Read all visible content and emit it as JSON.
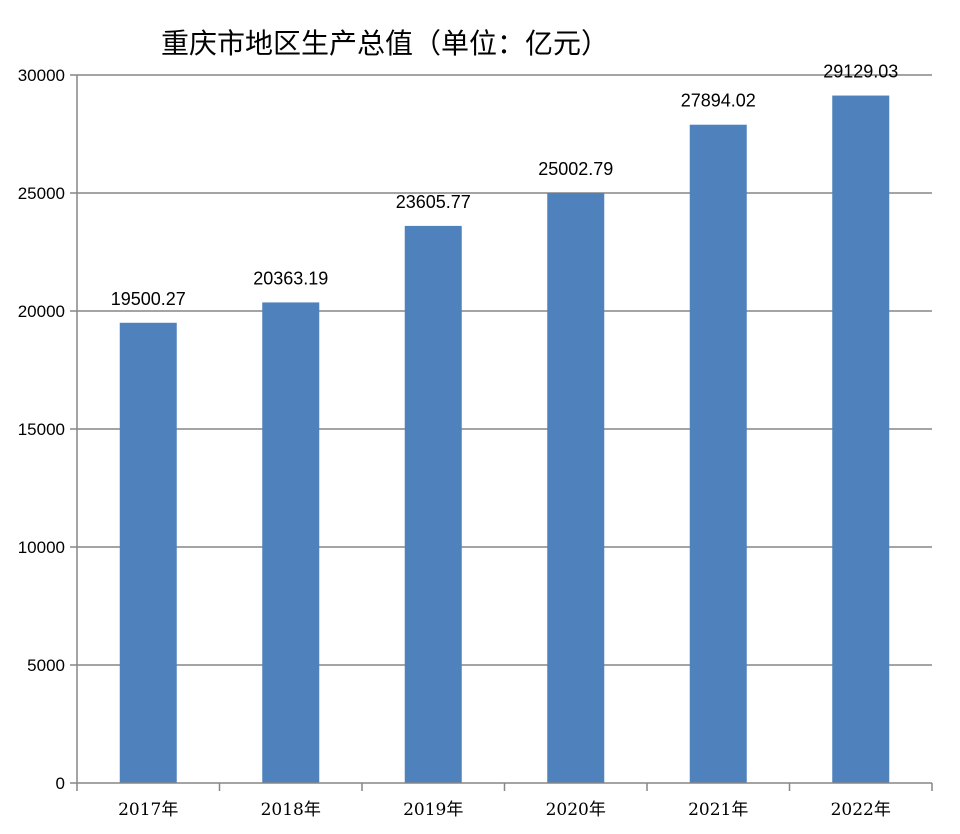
{
  "chart_data": {
    "type": "bar",
    "title": "重庆市地区生产总值（单位：亿元）",
    "categories": [
      "2017年",
      "2018年",
      "2019年",
      "2020年",
      "2021年",
      "2022年"
    ],
    "values": [
      19500.27,
      20363.19,
      23605.77,
      25002.79,
      27894.02,
      29129.03
    ],
    "data_labels": [
      "19500.27",
      "20363.19",
      "23605.77",
      "25002.79",
      "27894.02",
      "29129.03"
    ],
    "yticks": [
      "0",
      "5000",
      "10000",
      "15000",
      "20000",
      "25000",
      "30000"
    ],
    "ylim": [
      0,
      30000
    ],
    "grid": true,
    "bar_color": "#4F81BD",
    "grid_color": "#868686"
  }
}
